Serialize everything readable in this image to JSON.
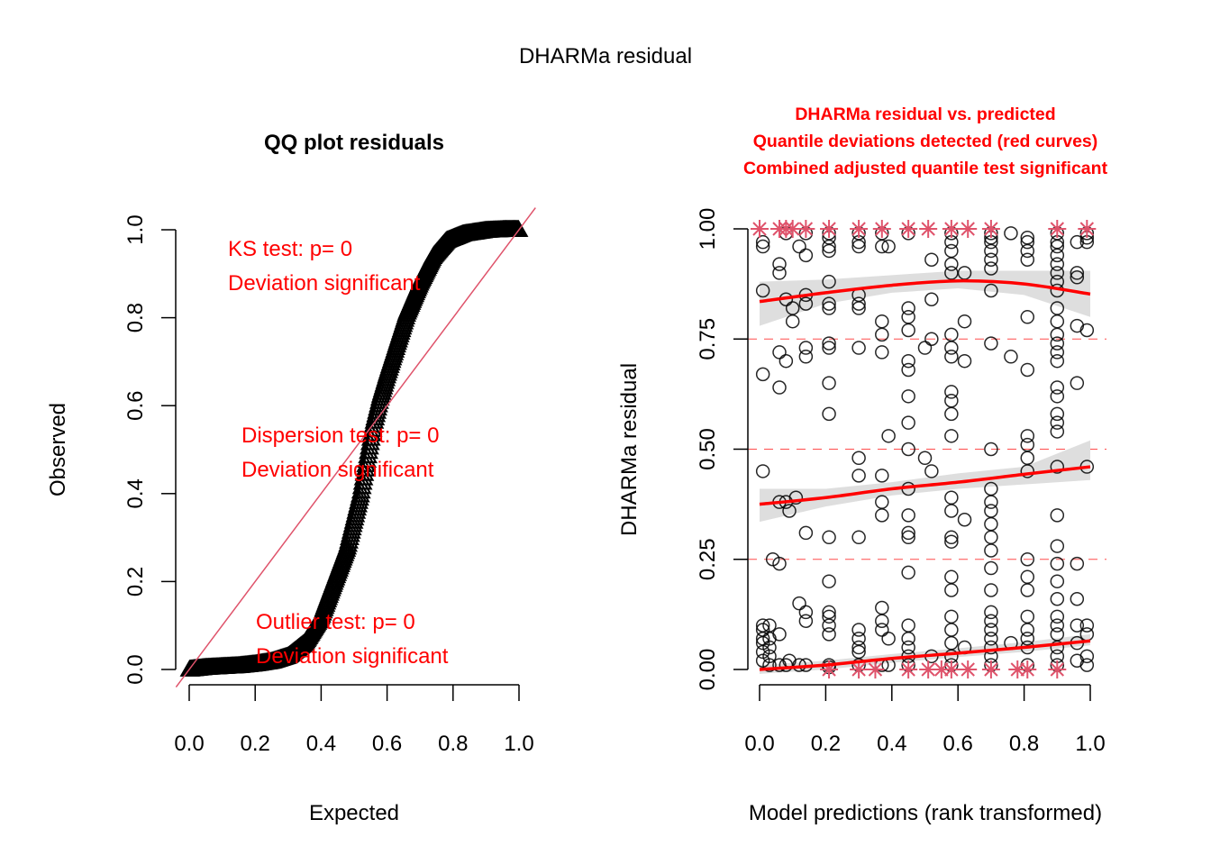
{
  "figure": {
    "title": "DHARMa residual"
  },
  "colors": {
    "annotation_red": "#ff0000",
    "identity_line": "#df536b",
    "outlier_star": "#df536b",
    "quantile_line": "#ff0000",
    "band_gray": "#dedede",
    "point_black": "#000000"
  },
  "chart_data": [
    {
      "type": "scatter",
      "title": "QQ plot residuals",
      "xlabel": "Expected",
      "ylabel": "Observed",
      "xlim": [
        0,
        1
      ],
      "ylim": [
        0,
        1
      ],
      "xticks": [
        "0.0",
        "0.2",
        "0.4",
        "0.6",
        "0.8",
        "1.0"
      ],
      "yticks": [
        "0.0",
        "0.2",
        "0.4",
        "0.6",
        "0.8",
        "1.0"
      ],
      "marker": "triangle",
      "reference_line": "y = x",
      "curve_points": [
        [
          0.0,
          0.0
        ],
        [
          0.05,
          0.004
        ],
        [
          0.1,
          0.006
        ],
        [
          0.15,
          0.008
        ],
        [
          0.2,
          0.012
        ],
        [
          0.25,
          0.018
        ],
        [
          0.3,
          0.03
        ],
        [
          0.35,
          0.06
        ],
        [
          0.4,
          0.12
        ],
        [
          0.44,
          0.2
        ],
        [
          0.48,
          0.28
        ],
        [
          0.5,
          0.34
        ],
        [
          0.52,
          0.4
        ],
        [
          0.54,
          0.48
        ],
        [
          0.56,
          0.56
        ],
        [
          0.58,
          0.62
        ],
        [
          0.6,
          0.67
        ],
        [
          0.63,
          0.74
        ],
        [
          0.66,
          0.81
        ],
        [
          0.7,
          0.88
        ],
        [
          0.74,
          0.94
        ],
        [
          0.78,
          0.975
        ],
        [
          0.83,
          0.99
        ],
        [
          0.9,
          0.998
        ],
        [
          0.96,
          1.0
        ],
        [
          1.0,
          1.0
        ]
      ],
      "annotations": [
        {
          "line1": "KS test: p= 0",
          "line2": "Deviation  significant"
        },
        {
          "line1": "Dispersion test: p= 0",
          "line2": "Deviation  significant"
        },
        {
          "line1": "Outlier test: p= 0",
          "line2": "Deviation  significant"
        }
      ]
    },
    {
      "type": "scatter",
      "title_lines": [
        "DHARMa residual vs. predicted",
        "Quantile deviations detected (red curves)",
        "Combined adjusted quantile test significant"
      ],
      "xlabel": "Model predictions (rank transformed)",
      "ylabel": "DHARMa residual",
      "xlim": [
        0,
        1
      ],
      "ylim": [
        0,
        1
      ],
      "xticks": [
        "0.0",
        "0.2",
        "0.4",
        "0.6",
        "0.8",
        "1.0"
      ],
      "yticks": [
        "0.00",
        "0.25",
        "0.50",
        "0.75",
        "1.00"
      ],
      "reference_quantiles": [
        0.25,
        0.5,
        0.75
      ],
      "quantile_curves": [
        {
          "quantile": 0.75,
          "x": [
            0,
            0.2,
            0.4,
            0.6,
            0.8,
            1.0
          ],
          "y": [
            0.835,
            0.855,
            0.872,
            0.882,
            0.875,
            0.852
          ],
          "band_low": [
            0.78,
            0.83,
            0.855,
            0.865,
            0.85,
            0.8
          ],
          "band_high": [
            0.88,
            0.885,
            0.895,
            0.905,
            0.905,
            0.905
          ]
        },
        {
          "quantile": 0.5,
          "x": [
            0,
            0.2,
            0.4,
            0.6,
            0.8,
            1.0
          ],
          "y": [
            0.375,
            0.39,
            0.41,
            0.425,
            0.443,
            0.46
          ],
          "band_low": [
            0.335,
            0.37,
            0.395,
            0.41,
            0.42,
            0.43
          ],
          "band_high": [
            0.41,
            0.41,
            0.425,
            0.445,
            0.46,
            0.52
          ]
        },
        {
          "quantile": 0.25,
          "x": [
            0,
            0.2,
            0.4,
            0.6,
            0.8,
            1.0
          ],
          "y": [
            0.0,
            0.01,
            0.025,
            0.037,
            0.05,
            0.065
          ],
          "band_low": [
            -0.01,
            0.0,
            0.015,
            0.028,
            0.04,
            0.055
          ],
          "band_high": [
            0.01,
            0.02,
            0.035,
            0.048,
            0.062,
            0.08
          ]
        }
      ],
      "points": [
        [
          0.01,
          0.97
        ],
        [
          0.01,
          0.96
        ],
        [
          0.01,
          0.86
        ],
        [
          0.01,
          0.67
        ],
        [
          0.01,
          0.45
        ],
        [
          0.01,
          0.1
        ],
        [
          0.01,
          0.09
        ],
        [
          0.01,
          0.07
        ],
        [
          0.01,
          0.06
        ],
        [
          0.01,
          0.04
        ],
        [
          0.01,
          0.02
        ],
        [
          0.03,
          0.1
        ],
        [
          0.03,
          0.07
        ],
        [
          0.03,
          0.05
        ],
        [
          0.03,
          0.03
        ],
        [
          0.03,
          0.01
        ],
        [
          0.04,
          0.25
        ],
        [
          0.06,
          0.92
        ],
        [
          0.06,
          0.9
        ],
        [
          0.06,
          0.72
        ],
        [
          0.06,
          0.64
        ],
        [
          0.06,
          0.38
        ],
        [
          0.06,
          0.24
        ],
        [
          0.06,
          0.08
        ],
        [
          0.06,
          0.01
        ],
        [
          0.08,
          0.99
        ],
        [
          0.08,
          0.84
        ],
        [
          0.08,
          0.7
        ],
        [
          0.08,
          0.38
        ],
        [
          0.08,
          0.01
        ],
        [
          0.09,
          0.36
        ],
        [
          0.09,
          0.02
        ],
        [
          0.1,
          0.82
        ],
        [
          0.1,
          0.79
        ],
        [
          0.11,
          0.39
        ],
        [
          0.12,
          0.96
        ],
        [
          0.12,
          0.15
        ],
        [
          0.12,
          0.01
        ],
        [
          0.14,
          0.99
        ],
        [
          0.14,
          0.94
        ],
        [
          0.14,
          0.85
        ],
        [
          0.14,
          0.83
        ],
        [
          0.14,
          0.73
        ],
        [
          0.14,
          0.71
        ],
        [
          0.14,
          0.31
        ],
        [
          0.14,
          0.13
        ],
        [
          0.14,
          0.11
        ],
        [
          0.14,
          0.01
        ],
        [
          0.21,
          0.99
        ],
        [
          0.21,
          0.98
        ],
        [
          0.21,
          0.96
        ],
        [
          0.21,
          0.95
        ],
        [
          0.21,
          0.88
        ],
        [
          0.21,
          0.83
        ],
        [
          0.21,
          0.82
        ],
        [
          0.21,
          0.74
        ],
        [
          0.21,
          0.73
        ],
        [
          0.21,
          0.65
        ],
        [
          0.21,
          0.58
        ],
        [
          0.21,
          0.3
        ],
        [
          0.21,
          0.2
        ],
        [
          0.21,
          0.13
        ],
        [
          0.21,
          0.12
        ],
        [
          0.21,
          0.1
        ],
        [
          0.21,
          0.08
        ],
        [
          0.21,
          0.01
        ],
        [
          0.21,
          0.005
        ],
        [
          0.3,
          0.99
        ],
        [
          0.3,
          0.97
        ],
        [
          0.3,
          0.96
        ],
        [
          0.3,
          0.85
        ],
        [
          0.3,
          0.83
        ],
        [
          0.3,
          0.82
        ],
        [
          0.3,
          0.73
        ],
        [
          0.3,
          0.48
        ],
        [
          0.3,
          0.44
        ],
        [
          0.3,
          0.3
        ],
        [
          0.3,
          0.09
        ],
        [
          0.3,
          0.07
        ],
        [
          0.3,
          0.05
        ],
        [
          0.3,
          0.04
        ],
        [
          0.3,
          0.01
        ],
        [
          0.37,
          0.99
        ],
        [
          0.37,
          0.96
        ],
        [
          0.37,
          0.79
        ],
        [
          0.37,
          0.76
        ],
        [
          0.37,
          0.72
        ],
        [
          0.37,
          0.44
        ],
        [
          0.37,
          0.38
        ],
        [
          0.37,
          0.35
        ],
        [
          0.37,
          0.14
        ],
        [
          0.37,
          0.11
        ],
        [
          0.37,
          0.09
        ],
        [
          0.37,
          0.01
        ],
        [
          0.39,
          0.96
        ],
        [
          0.39,
          0.53
        ],
        [
          0.39,
          0.07
        ],
        [
          0.39,
          0.01
        ],
        [
          0.45,
          0.99
        ],
        [
          0.45,
          0.82
        ],
        [
          0.45,
          0.8
        ],
        [
          0.45,
          0.77
        ],
        [
          0.45,
          0.7
        ],
        [
          0.45,
          0.68
        ],
        [
          0.45,
          0.62
        ],
        [
          0.45,
          0.56
        ],
        [
          0.45,
          0.5
        ],
        [
          0.45,
          0.41
        ],
        [
          0.45,
          0.35
        ],
        [
          0.45,
          0.31
        ],
        [
          0.45,
          0.3
        ],
        [
          0.45,
          0.22
        ],
        [
          0.45,
          0.1
        ],
        [
          0.45,
          0.07
        ],
        [
          0.45,
          0.05
        ],
        [
          0.45,
          0.03
        ],
        [
          0.45,
          0.01
        ],
        [
          0.52,
          0.93
        ],
        [
          0.52,
          0.84
        ],
        [
          0.52,
          0.75
        ],
        [
          0.52,
          0.45
        ],
        [
          0.52,
          0.03
        ],
        [
          0.5,
          0.73
        ],
        [
          0.5,
          0.48
        ],
        [
          0.58,
          0.99
        ],
        [
          0.58,
          0.97
        ],
        [
          0.58,
          0.95
        ],
        [
          0.58,
          0.92
        ],
        [
          0.58,
          0.9
        ],
        [
          0.58,
          0.76
        ],
        [
          0.58,
          0.73
        ],
        [
          0.58,
          0.71
        ],
        [
          0.58,
          0.63
        ],
        [
          0.58,
          0.61
        ],
        [
          0.58,
          0.58
        ],
        [
          0.58,
          0.53
        ],
        [
          0.58,
          0.39
        ],
        [
          0.58,
          0.36
        ],
        [
          0.58,
          0.3
        ],
        [
          0.58,
          0.29
        ],
        [
          0.58,
          0.21
        ],
        [
          0.58,
          0.18
        ],
        [
          0.58,
          0.12
        ],
        [
          0.58,
          0.09
        ],
        [
          0.58,
          0.06
        ],
        [
          0.58,
          0.03
        ],
        [
          0.58,
          0.01
        ],
        [
          0.62,
          0.9
        ],
        [
          0.62,
          0.79
        ],
        [
          0.62,
          0.7
        ],
        [
          0.62,
          0.34
        ],
        [
          0.62,
          0.05
        ],
        [
          0.7,
          0.99
        ],
        [
          0.7,
          0.98
        ],
        [
          0.7,
          0.97
        ],
        [
          0.7,
          0.95
        ],
        [
          0.7,
          0.93
        ],
        [
          0.7,
          0.91
        ],
        [
          0.7,
          0.86
        ],
        [
          0.7,
          0.74
        ],
        [
          0.7,
          0.5
        ],
        [
          0.7,
          0.41
        ],
        [
          0.7,
          0.38
        ],
        [
          0.7,
          0.36
        ],
        [
          0.7,
          0.33
        ],
        [
          0.7,
          0.3
        ],
        [
          0.7,
          0.27
        ],
        [
          0.7,
          0.23
        ],
        [
          0.7,
          0.18
        ],
        [
          0.7,
          0.13
        ],
        [
          0.7,
          0.11
        ],
        [
          0.7,
          0.09
        ],
        [
          0.7,
          0.07
        ],
        [
          0.7,
          0.05
        ],
        [
          0.7,
          0.03
        ],
        [
          0.7,
          0.01
        ],
        [
          0.76,
          0.99
        ],
        [
          0.76,
          0.71
        ],
        [
          0.76,
          0.06
        ],
        [
          0.81,
          0.98
        ],
        [
          0.81,
          0.97
        ],
        [
          0.81,
          0.95
        ],
        [
          0.81,
          0.93
        ],
        [
          0.81,
          0.8
        ],
        [
          0.81,
          0.68
        ],
        [
          0.81,
          0.53
        ],
        [
          0.81,
          0.51
        ],
        [
          0.81,
          0.48
        ],
        [
          0.81,
          0.45
        ],
        [
          0.81,
          0.25
        ],
        [
          0.81,
          0.21
        ],
        [
          0.81,
          0.18
        ],
        [
          0.81,
          0.12
        ],
        [
          0.81,
          0.09
        ],
        [
          0.81,
          0.07
        ],
        [
          0.81,
          0.05
        ],
        [
          0.81,
          0.01
        ],
        [
          0.9,
          0.99
        ],
        [
          0.9,
          0.97
        ],
        [
          0.9,
          0.96
        ],
        [
          0.9,
          0.94
        ],
        [
          0.9,
          0.92
        ],
        [
          0.9,
          0.9
        ],
        [
          0.9,
          0.88
        ],
        [
          0.9,
          0.86
        ],
        [
          0.9,
          0.82
        ],
        [
          0.9,
          0.79
        ],
        [
          0.9,
          0.76
        ],
        [
          0.9,
          0.74
        ],
        [
          0.9,
          0.72
        ],
        [
          0.9,
          0.7
        ],
        [
          0.9,
          0.64
        ],
        [
          0.9,
          0.62
        ],
        [
          0.9,
          0.58
        ],
        [
          0.9,
          0.56
        ],
        [
          0.9,
          0.54
        ],
        [
          0.9,
          0.46
        ],
        [
          0.9,
          0.35
        ],
        [
          0.9,
          0.28
        ],
        [
          0.9,
          0.24
        ],
        [
          0.9,
          0.2
        ],
        [
          0.9,
          0.16
        ],
        [
          0.9,
          0.12
        ],
        [
          0.9,
          0.1
        ],
        [
          0.9,
          0.08
        ],
        [
          0.9,
          0.05
        ],
        [
          0.9,
          0.03
        ],
        [
          0.9,
          0.01
        ],
        [
          0.96,
          0.97
        ],
        [
          0.96,
          0.9
        ],
        [
          0.96,
          0.89
        ],
        [
          0.96,
          0.78
        ],
        [
          0.96,
          0.65
        ],
        [
          0.96,
          0.24
        ],
        [
          0.96,
          0.16
        ],
        [
          0.96,
          0.1
        ],
        [
          0.96,
          0.06
        ],
        [
          0.96,
          0.02
        ],
        [
          0.99,
          0.99
        ],
        [
          0.99,
          0.98
        ],
        [
          0.99,
          0.97
        ],
        [
          0.99,
          0.77
        ],
        [
          0.99,
          0.46
        ],
        [
          0.99,
          0.1
        ],
        [
          0.99,
          0.08
        ],
        [
          0.99,
          0.03
        ],
        [
          0.99,
          0.01
        ]
      ],
      "outliers": [
        [
          0.0,
          1.0
        ],
        [
          0.06,
          1.0
        ],
        [
          0.08,
          1.0
        ],
        [
          0.1,
          1.0
        ],
        [
          0.14,
          1.0
        ],
        [
          0.21,
          1.0
        ],
        [
          0.3,
          1.0
        ],
        [
          0.37,
          1.0
        ],
        [
          0.45,
          1.0
        ],
        [
          0.51,
          1.0
        ],
        [
          0.58,
          1.0
        ],
        [
          0.63,
          1.0
        ],
        [
          0.7,
          1.0
        ],
        [
          0.9,
          1.0
        ],
        [
          0.99,
          1.0
        ],
        [
          0.21,
          0.0
        ],
        [
          0.3,
          0.0
        ],
        [
          0.35,
          0.0
        ],
        [
          0.45,
          0.0
        ],
        [
          0.51,
          0.0
        ],
        [
          0.55,
          0.0
        ],
        [
          0.58,
          0.0
        ],
        [
          0.63,
          0.0
        ],
        [
          0.7,
          0.0
        ],
        [
          0.78,
          0.0
        ],
        [
          0.81,
          0.0
        ],
        [
          0.9,
          0.0
        ]
      ]
    }
  ]
}
